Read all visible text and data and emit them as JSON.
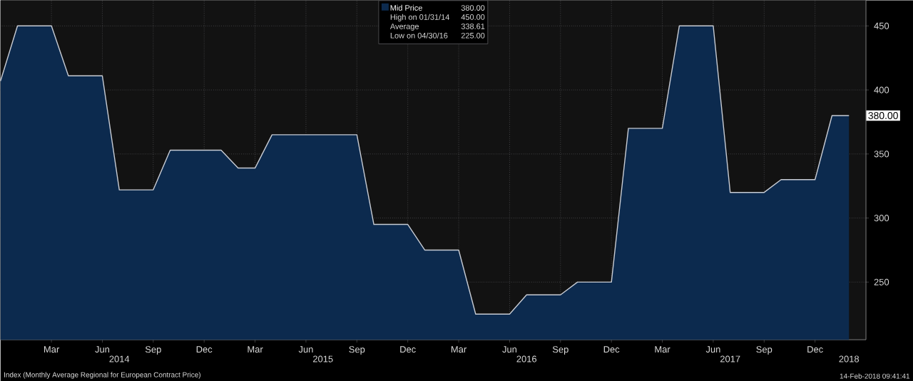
{
  "chart_data": {
    "type": "area",
    "x": [
      "2013-12",
      "2014-01",
      "2014-02",
      "2014-03",
      "2014-04",
      "2014-05",
      "2014-06",
      "2014-07",
      "2014-08",
      "2014-09",
      "2014-10",
      "2014-11",
      "2014-12",
      "2015-01",
      "2015-02",
      "2015-03",
      "2015-04",
      "2015-05",
      "2015-06",
      "2015-07",
      "2015-08",
      "2015-09",
      "2015-10",
      "2015-11",
      "2015-12",
      "2016-01",
      "2016-02",
      "2016-03",
      "2016-04",
      "2016-05",
      "2016-06",
      "2016-07",
      "2016-08",
      "2016-09",
      "2016-10",
      "2016-11",
      "2016-12",
      "2017-01",
      "2017-02",
      "2017-03",
      "2017-04",
      "2017-05",
      "2017-06",
      "2017-07",
      "2017-08",
      "2017-09",
      "2017-10",
      "2017-11",
      "2017-12",
      "2018-01",
      "2018-02"
    ],
    "series": [
      {
        "name": "Mid Price",
        "color": "#0c2a4e",
        "values": [
          407,
          450,
          450,
          450,
          411,
          411,
          411,
          322,
          322,
          322,
          353,
          353,
          353,
          353,
          339,
          339,
          365,
          365,
          365,
          365,
          365,
          365,
          295,
          295,
          295,
          275,
          275,
          275,
          225,
          225,
          225,
          240,
          240,
          240,
          250,
          250,
          250,
          370,
          370,
          370,
          450,
          450,
          450,
          320,
          320,
          320,
          330,
          330,
          330,
          380,
          380
        ]
      }
    ],
    "xlim": [
      "2013-12",
      "2018-03"
    ],
    "ylim": [
      205,
      470
    ],
    "xticks": [
      {
        "value": "2014-03",
        "label": "Mar"
      },
      {
        "value": "2014-06",
        "label": "Jun"
      },
      {
        "value": "2014-09",
        "label": "Sep"
      },
      {
        "value": "2014-12",
        "label": "Dec"
      },
      {
        "value": "2015-03",
        "label": "Mar"
      },
      {
        "value": "2015-06",
        "label": "Jun"
      },
      {
        "value": "2015-09",
        "label": "Sep"
      },
      {
        "value": "2015-12",
        "label": "Dec"
      },
      {
        "value": "2016-03",
        "label": "Mar"
      },
      {
        "value": "2016-06",
        "label": "Jun"
      },
      {
        "value": "2016-09",
        "label": "Sep"
      },
      {
        "value": "2016-12",
        "label": "Dec"
      },
      {
        "value": "2017-03",
        "label": "Mar"
      },
      {
        "value": "2017-06",
        "label": "Jun"
      },
      {
        "value": "2017-09",
        "label": "Sep"
      },
      {
        "value": "2017-12",
        "label": "Dec"
      }
    ],
    "yticks": [
      250,
      300,
      350,
      400,
      450
    ],
    "grid": true,
    "legend": "top",
    "annotations": [
      "380.00",
      "High on 01/31/14",
      "450.00",
      "Average",
      "338.61",
      "Low on 04/30/16",
      "225.00",
      "380.00",
      "2014",
      "2015",
      "2016",
      "2017",
      "2018",
      "Index (Monthly Average Regional for European Contract Price)",
      "14-Feb-2018 09:41:41"
    ]
  }
}
